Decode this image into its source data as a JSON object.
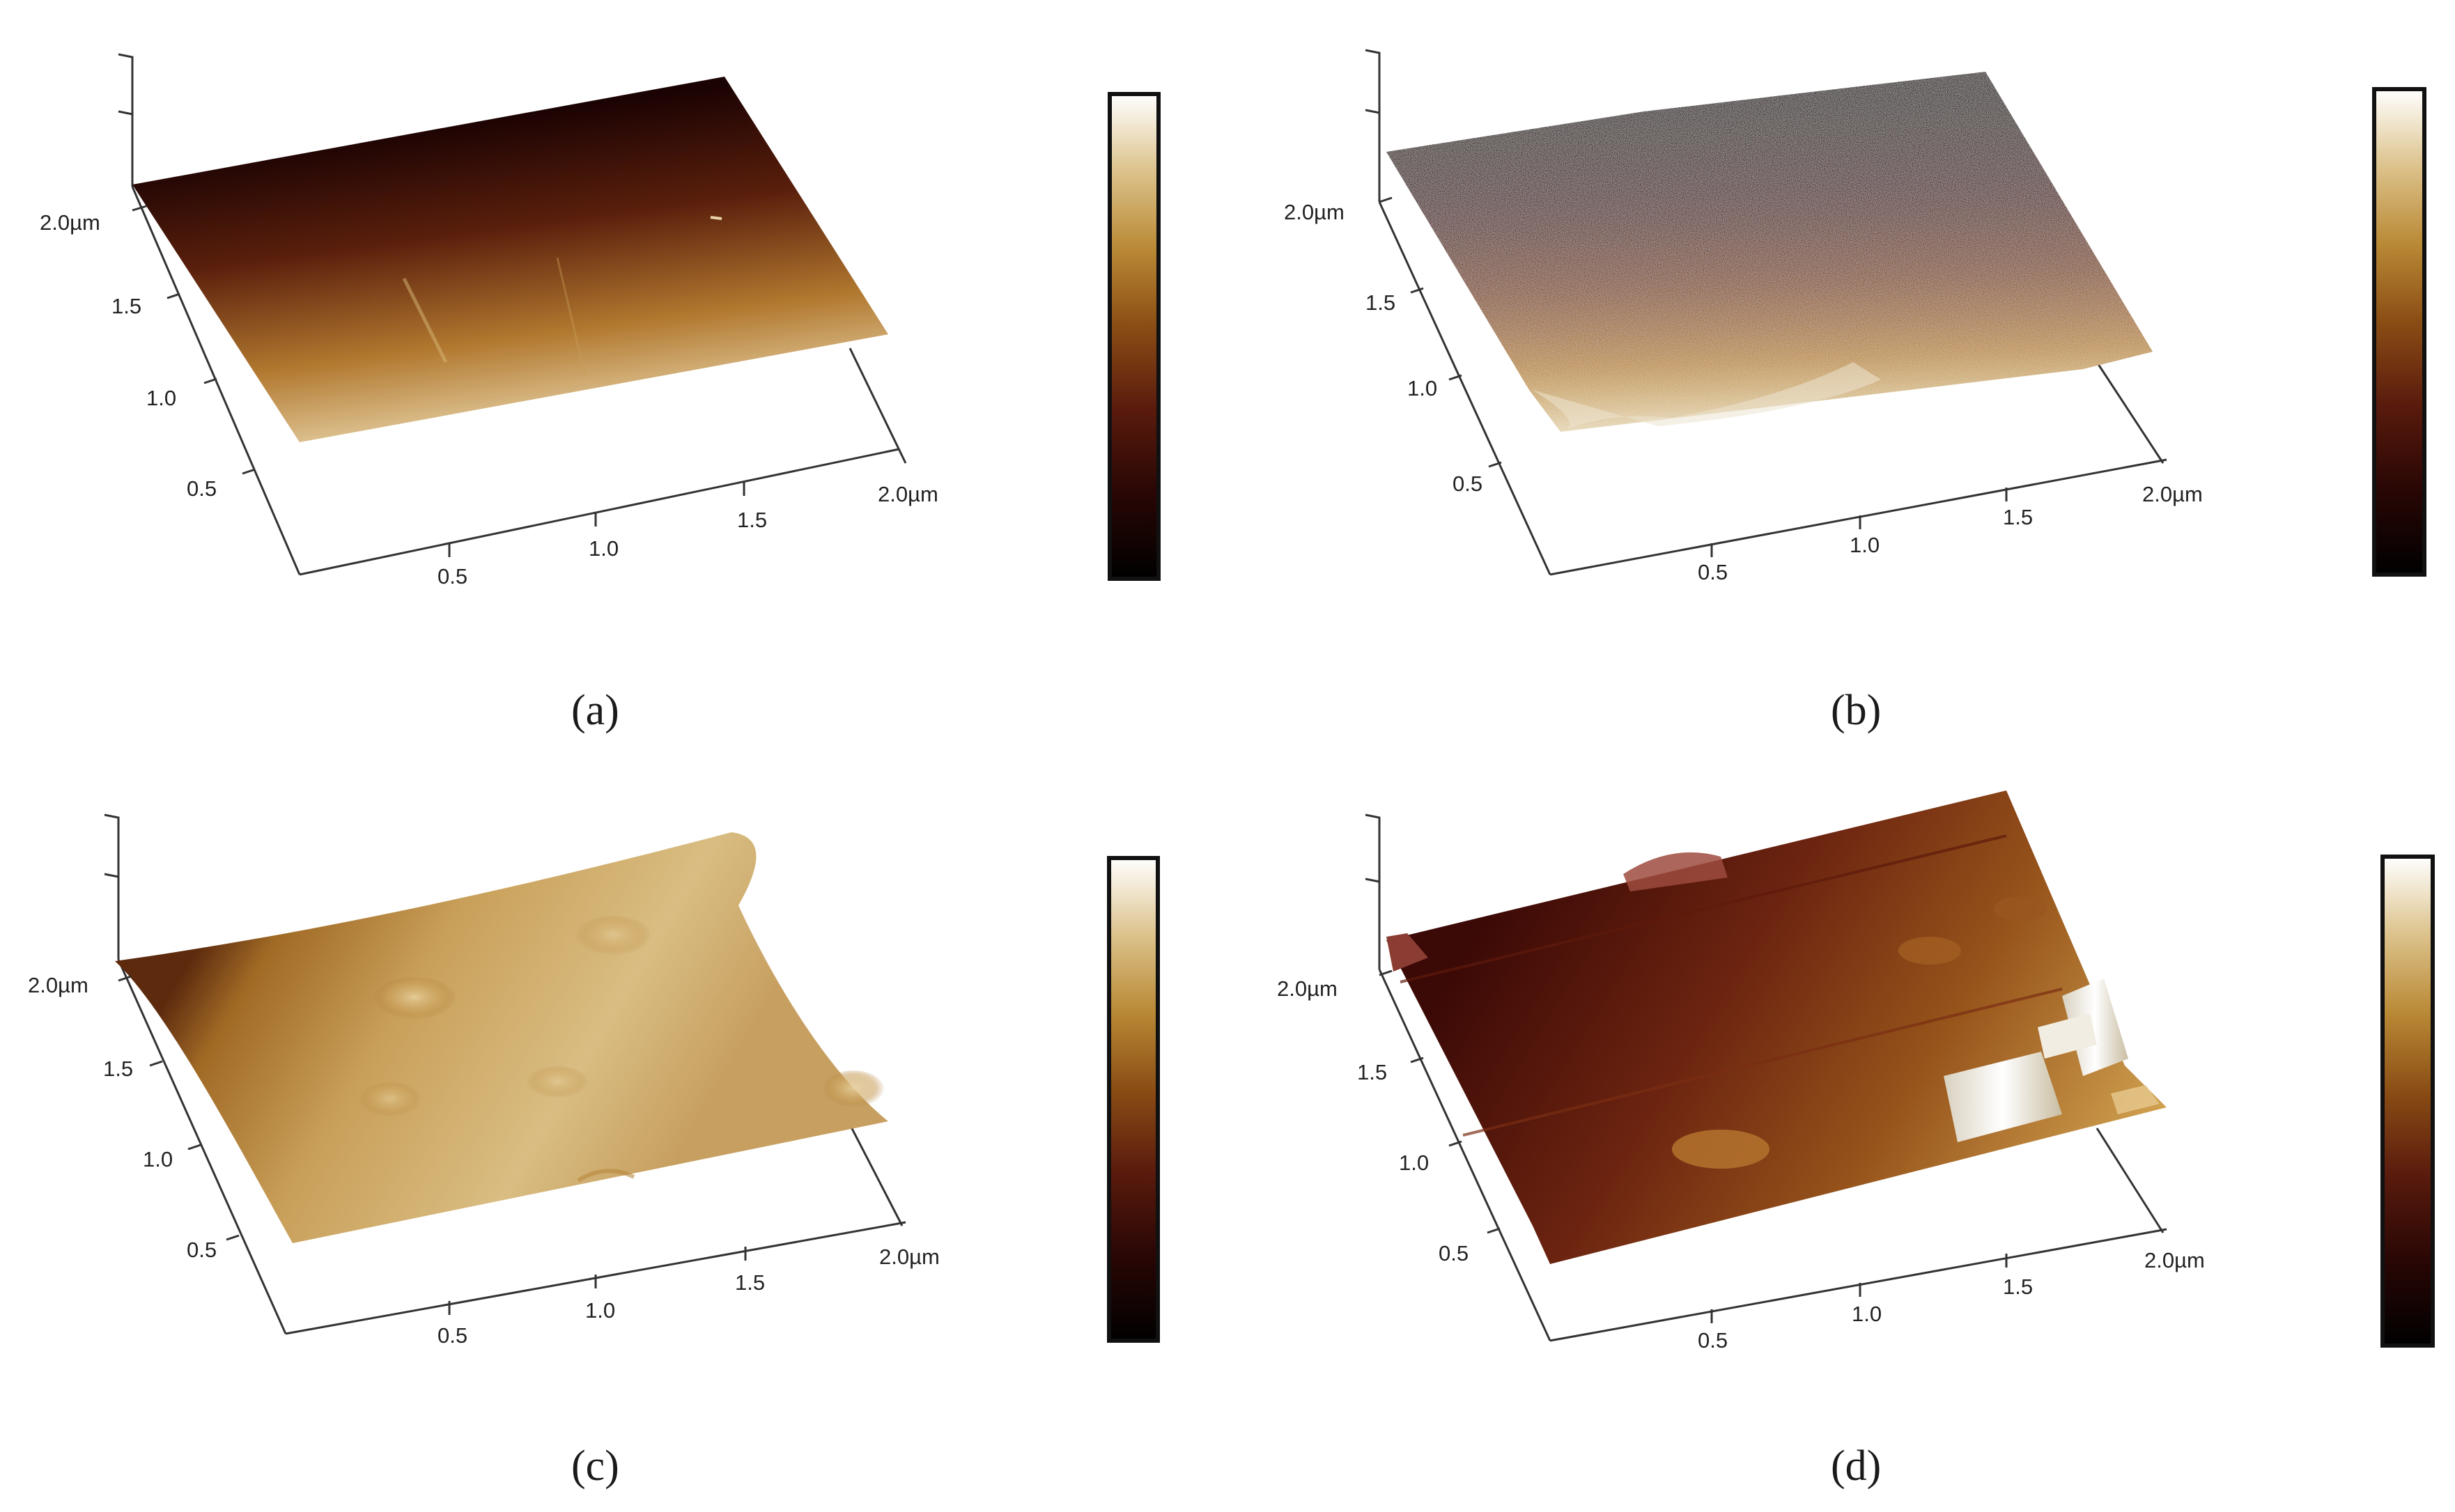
{
  "colors": {
    "afm_colormap": [
      "#000000",
      "#2a0705",
      "#5a1b0d",
      "#8a4d14",
      "#b98935",
      "#dcc28b",
      "#ffffff"
    ],
    "axis": "#333333",
    "text": "#222222"
  },
  "panels": [
    {
      "id": "a",
      "caption": "(a)",
      "y_ticks": [
        "2.0µm",
        "1.5",
        "1.0",
        "0.5"
      ],
      "x_ticks": [
        "0.5",
        "1.0",
        "1.5",
        "2.0µm"
      ],
      "surface": "smooth flat plane with gradient from dark brown to light tan"
    },
    {
      "id": "b",
      "caption": "(b)",
      "y_ticks": [
        "2.0µm",
        "1.5",
        "1.0",
        "0.5"
      ],
      "x_ticks": [
        "0.5",
        "1.0",
        "1.5",
        "2.0µm"
      ],
      "surface": "rough grainy surface"
    },
    {
      "id": "c",
      "caption": "(c)",
      "y_ticks": [
        "2.0µm",
        "1.5",
        "1.0",
        "0.5"
      ],
      "x_ticks": [
        "0.5",
        "1.0",
        "1.5",
        "2.0µm"
      ],
      "surface": "curved smooth surface with shallow bumps"
    },
    {
      "id": "d",
      "caption": "(d)",
      "y_ticks": [
        "2.0µm",
        "1.5",
        "1.0",
        "0.5"
      ],
      "x_ticks": [
        "0.5",
        "1.0",
        "1.5",
        "2.0µm"
      ],
      "surface": "terraced surface with tall bright protrusions"
    }
  ]
}
